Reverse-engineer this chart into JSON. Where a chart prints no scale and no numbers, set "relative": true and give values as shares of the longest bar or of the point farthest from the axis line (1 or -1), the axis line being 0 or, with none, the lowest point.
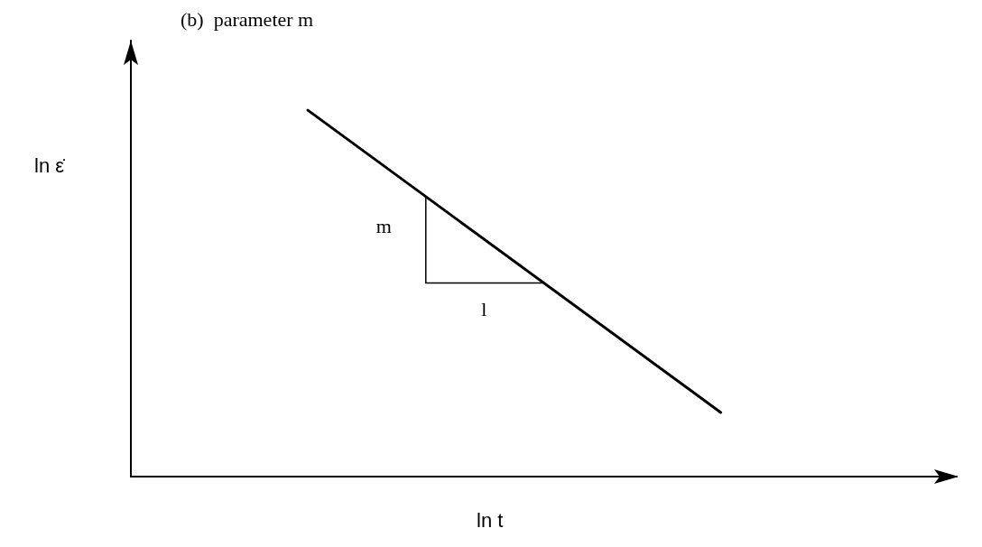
{
  "chart_data": {
    "type": "line",
    "title": "(b)  parameter m",
    "xlabel": "ln t",
    "ylabel": "ln ε̇",
    "relative": true,
    "categories": [
      null,
      null,
      null,
      null,
      null,
      null,
      null,
      null,
      null,
      null,
      null,
      null,
      null,
      null,
      null
    ],
    "series": [
      {
        "color": "#000000",
        "values": [
          null,
          null,
          null,
          1,
          null,
          null,
          null,
          null,
          null,
          null,
          0.175,
          null,
          null,
          null,
          null
        ]
      }
    ],
    "annotations": [
      "m",
      "l"
    ],
    "marker": "none",
    "line_style": "solid",
    "grid": false
  }
}
